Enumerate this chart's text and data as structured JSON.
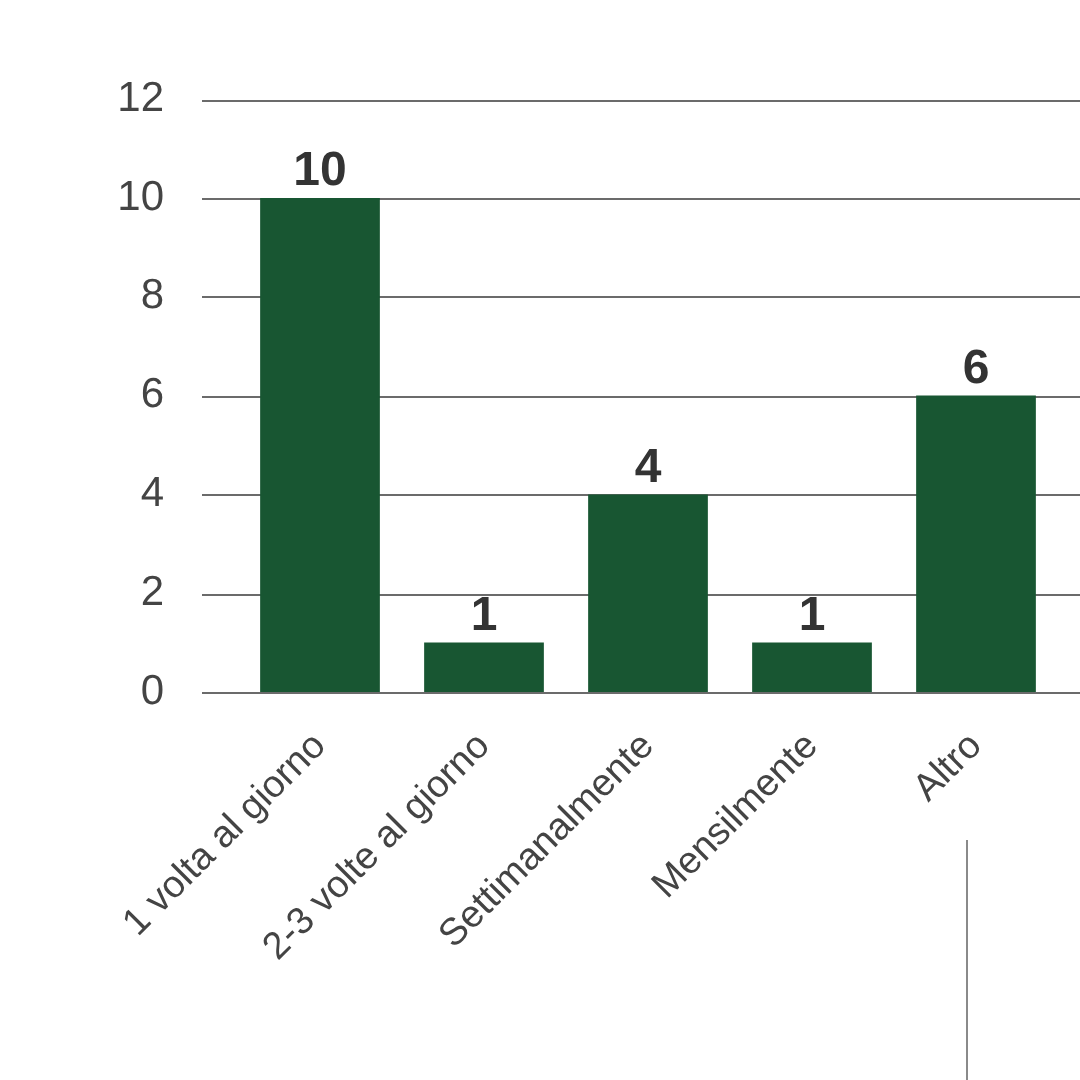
{
  "chart_data": {
    "type": "bar",
    "categories": [
      "1 volta al giorno",
      "2-3 volte al giorno",
      "Settimanalmente",
      "Mensilmente",
      "Altro"
    ],
    "values": [
      10,
      1,
      4,
      1,
      6
    ],
    "color": "#185632",
    "ylim": [
      0,
      12
    ],
    "yticks": [
      0,
      2,
      4,
      6,
      8,
      10,
      12
    ],
    "grid": "y",
    "data_labels": true
  }
}
